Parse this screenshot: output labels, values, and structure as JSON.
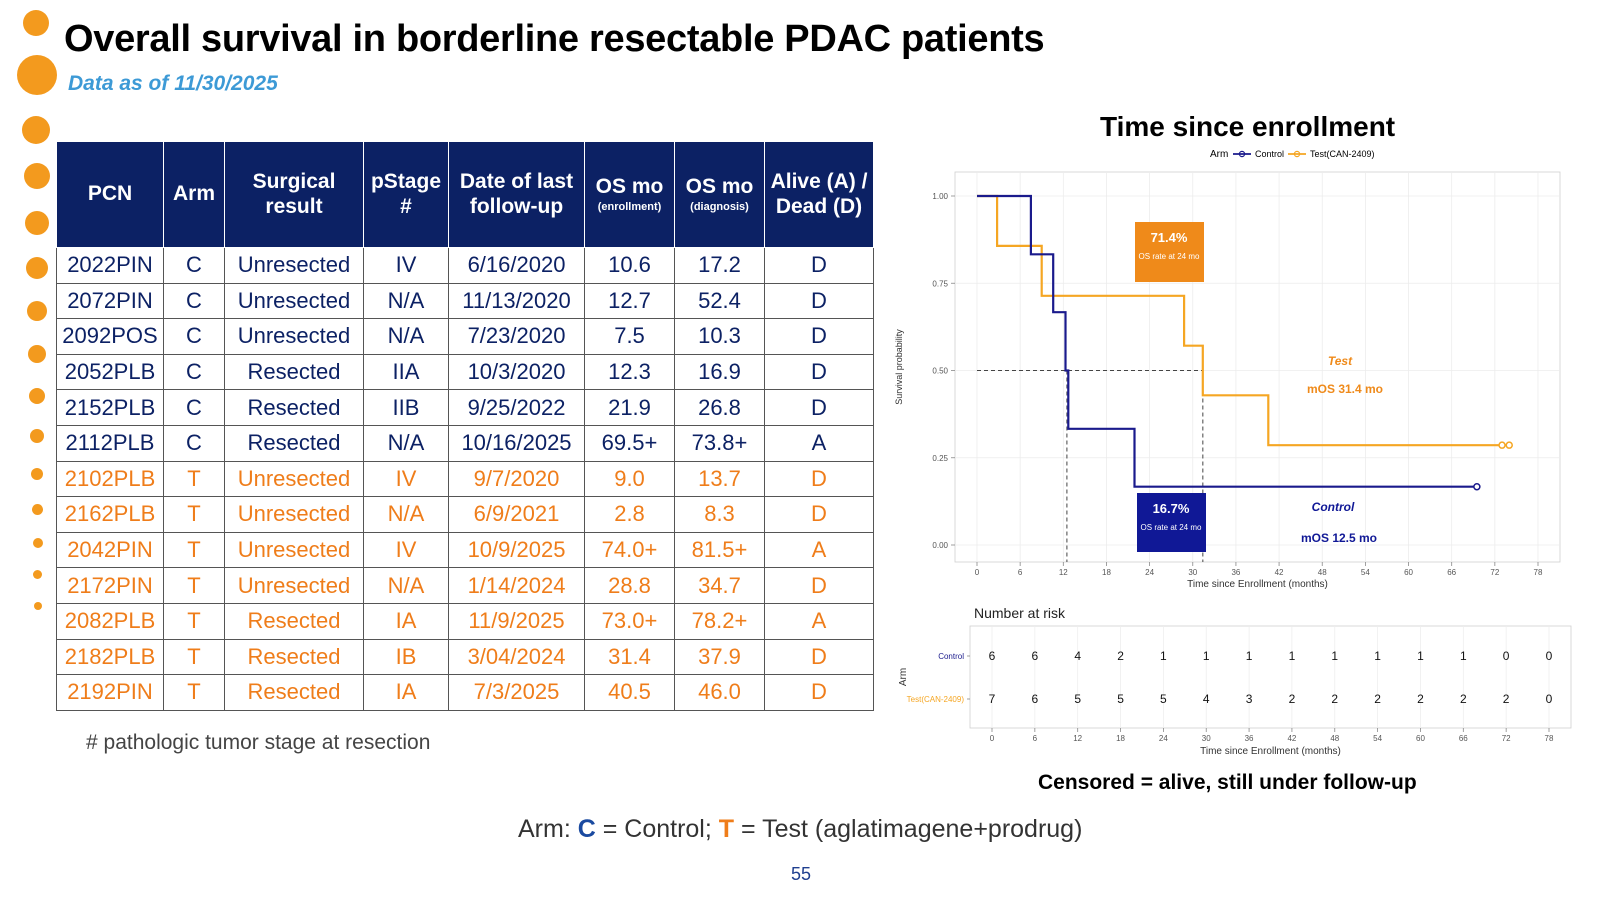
{
  "title": "Overall survival in borderline resectable PDAC patients",
  "subtitle": "Data as of 11/30/2025",
  "colors": {
    "navy": "#0c2164",
    "control": "#1a1a8c",
    "test": "#f5a623",
    "orange_text": "#ef7d1a",
    "accent_blue": "#3d9ad6",
    "dots": "#f39a1e"
  },
  "table": {
    "headers": [
      {
        "label": "PCN",
        "sub": ""
      },
      {
        "label": "Arm",
        "sub": ""
      },
      {
        "label": "Surgical result",
        "sub": ""
      },
      {
        "label": "pStage #",
        "sub": ""
      },
      {
        "label": "Date of last follow-up",
        "sub": ""
      },
      {
        "label": "OS mo",
        "sub": "(enrollment)"
      },
      {
        "label": "OS mo",
        "sub": "(diagnosis)"
      },
      {
        "label": "Alive (A) / Dead (D)",
        "sub": ""
      }
    ],
    "rows": [
      {
        "arm_group": "C",
        "cells": [
          "2022PIN",
          "C",
          "Unresected",
          "IV",
          "6/16/2020",
          "10.6",
          "17.2",
          "D"
        ]
      },
      {
        "arm_group": "C",
        "cells": [
          "2072PIN",
          "C",
          "Unresected",
          "N/A",
          "11/13/2020",
          "12.7",
          "52.4",
          "D"
        ]
      },
      {
        "arm_group": "C",
        "cells": [
          "2092POS",
          "C",
          "Unresected",
          "N/A",
          "7/23/2020",
          "7.5",
          "10.3",
          "D"
        ]
      },
      {
        "arm_group": "C",
        "cells": [
          "2052PLB",
          "C",
          "Resected",
          "IIA",
          "10/3/2020",
          "12.3",
          "16.9",
          "D"
        ]
      },
      {
        "arm_group": "C",
        "cells": [
          "2152PLB",
          "C",
          "Resected",
          "IIB",
          "9/25/2022",
          "21.9",
          "26.8",
          "D"
        ]
      },
      {
        "arm_group": "C",
        "cells": [
          "2112PLB",
          "C",
          "Resected",
          "N/A",
          "10/16/2025",
          "69.5+",
          "73.8+",
          "A"
        ]
      },
      {
        "arm_group": "T",
        "cells": [
          "2102PLB",
          "T",
          "Unresected",
          "IV",
          "9/7/2020",
          "9.0",
          "13.7",
          "D"
        ]
      },
      {
        "arm_group": "T",
        "cells": [
          "2162PLB",
          "T",
          "Unresected",
          "N/A",
          "6/9/2021",
          "2.8",
          "8.3",
          "D"
        ]
      },
      {
        "arm_group": "T",
        "cells": [
          "2042PIN",
          "T",
          "Unresected",
          "IV",
          "10/9/2025",
          "74.0+",
          "81.5+",
          "A"
        ]
      },
      {
        "arm_group": "T",
        "cells": [
          "2172PIN",
          "T",
          "Unresected",
          "N/A",
          "1/14/2024",
          "28.8",
          "34.7",
          "D"
        ]
      },
      {
        "arm_group": "T",
        "cells": [
          "2082PLB",
          "T",
          "Resected",
          "IA",
          "11/9/2025",
          "73.0+",
          "78.2+",
          "A"
        ]
      },
      {
        "arm_group": "T",
        "cells": [
          "2182PLB",
          "T",
          "Resected",
          "IB",
          "3/04/2024",
          "31.4",
          "37.9",
          "D"
        ]
      },
      {
        "arm_group": "T",
        "cells": [
          "2192PIN",
          "T",
          "Resected",
          "IA",
          "7/3/2025",
          "40.5",
          "46.0",
          "D"
        ]
      }
    ]
  },
  "footnote": "# pathologic tumor stage at resection",
  "chart_title": "Time since enrollment",
  "chart_data": {
    "type": "line",
    "step": true,
    "legend_title": "Arm",
    "legend_position": "top",
    "xlabel": "Time since Enrollment (months)",
    "ylabel": "Survival probability",
    "xlim": [
      0,
      78
    ],
    "ylim": [
      0,
      1
    ],
    "xticks": [
      0,
      6,
      12,
      18,
      24,
      30,
      36,
      42,
      48,
      54,
      60,
      66,
      72,
      78
    ],
    "yticks": [
      "0.00",
      "0.25",
      "0.50",
      "0.75",
      "1.00"
    ],
    "grid": true,
    "series": [
      {
        "name": "Control",
        "color": "#1a1a8c",
        "x": [
          0,
          7.5,
          7.5,
          10.6,
          10.6,
          12.3,
          12.3,
          12.7,
          12.7,
          21.9,
          21.9,
          69.5
        ],
        "y": [
          1.0,
          1.0,
          0.833,
          0.833,
          0.667,
          0.667,
          0.5,
          0.5,
          0.333,
          0.333,
          0.167,
          0.167
        ],
        "censored": [
          69.5
        ]
      },
      {
        "name": "Test(CAN-2409)",
        "color": "#f5a623",
        "x": [
          0,
          2.8,
          2.8,
          9.0,
          9.0,
          28.8,
          28.8,
          31.4,
          31.4,
          40.5,
          40.5,
          74.0
        ],
        "y": [
          1.0,
          1.0,
          0.857,
          0.857,
          0.714,
          0.714,
          0.571,
          0.571,
          0.429,
          0.429,
          0.286,
          0.286
        ],
        "censored": [
          73.0,
          74.0
        ]
      }
    ],
    "median_lines": {
      "y": 0.5,
      "control_x": 12.5,
      "test_x": 31.4
    },
    "annotations": {
      "test_box": {
        "value": "71.4%",
        "note": "OS rate at 24 mo"
      },
      "control_box": {
        "value": "16.7%",
        "note": "OS rate at 24 mo"
      },
      "test_label": "Test",
      "test_median": "mOS 31.4 mo",
      "control_label": "Control",
      "control_median": "mOS 12.5 mo"
    },
    "risk_table": {
      "title": "Number at risk",
      "ylabel": "Arm",
      "xlabel": "Time since Enrollment (months)",
      "times": [
        0,
        6,
        12,
        18,
        24,
        30,
        36,
        42,
        48,
        54,
        60,
        66,
        72,
        78
      ],
      "rows": [
        {
          "name": "Control",
          "counts": [
            6,
            6,
            4,
            2,
            1,
            1,
            1,
            1,
            1,
            1,
            1,
            1,
            0,
            0
          ]
        },
        {
          "name": "Test(CAN-2409)",
          "counts": [
            7,
            6,
            5,
            5,
            5,
            4,
            3,
            2,
            2,
            2,
            2,
            2,
            2,
            0
          ]
        }
      ]
    }
  },
  "censored_note": "Censored = alive, still under follow-up",
  "arm_legend": {
    "prefix": "Arm: ",
    "c_letter": "C",
    "c_text": " = Control; ",
    "t_letter": "T",
    "t_text": " = Test (aglatimagene+prodrug)"
  },
  "page_number": "55"
}
